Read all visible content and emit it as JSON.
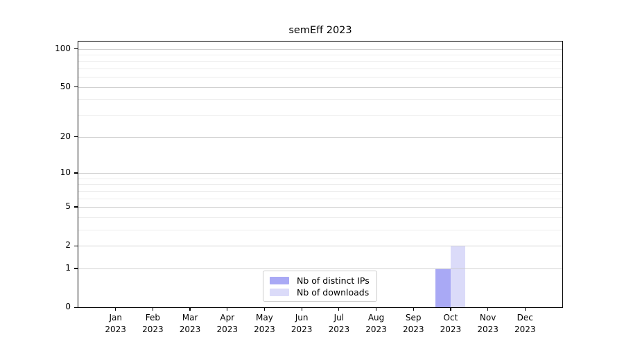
{
  "chart_data": {
    "type": "bar",
    "title": "semEff 2023",
    "categories": [
      "Jan",
      "Feb",
      "Mar",
      "Apr",
      "May",
      "Jun",
      "Jul",
      "Aug",
      "Sep",
      "Oct",
      "Nov",
      "Dec"
    ],
    "year": "2023",
    "series": [
      {
        "name": "Nb of distinct IPs",
        "color": "#a9a9f5",
        "values": [
          0,
          0,
          0,
          0,
          0,
          0,
          0,
          0,
          0,
          1,
          0,
          0
        ]
      },
      {
        "name": "Nb of downloads",
        "color": "#dbdbf9",
        "values": [
          0,
          0,
          0,
          0,
          0,
          0,
          0,
          0,
          0,
          2,
          0,
          0
        ]
      }
    ],
    "y_ticks": [
      100,
      50,
      20,
      10,
      5,
      2,
      1,
      0
    ],
    "ylim": [
      0,
      114
    ],
    "yscale": "log1p",
    "grid": true,
    "legend_position": "lower center"
  },
  "colors": {
    "grid_major": "#c9c9c9",
    "grid_minor": "#ececec",
    "axis": "#000000"
  }
}
